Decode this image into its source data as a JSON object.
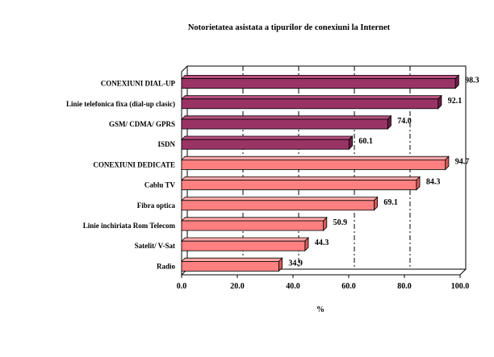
{
  "chart_data": {
    "type": "bar",
    "orientation": "horizontal",
    "title": "Notorietatea asistata a tipurilor de conexiuni la Internet",
    "xlabel": "%",
    "xlim": [
      0,
      100
    ],
    "xticks": [
      "0.0",
      "20.0",
      "40.0",
      "60.0",
      "80.0",
      "100.0"
    ],
    "categories": [
      "CONEXIUNI DIAL-UP",
      "Linie telefonica fixa (dial-up clasic)",
      "GSM/ CDMA/ GPRS",
      "ISDN",
      "CONEXIUNI DEDICATE",
      "Cablu TV",
      "Fibra optica",
      "Linie inchiriata Rom Telecom",
      "Satelit/ V-Sat",
      "Radio"
    ],
    "values": [
      98.3,
      92.1,
      74.0,
      60.1,
      94.7,
      84.3,
      69.1,
      50.9,
      44.3,
      34.9
    ],
    "value_labels": [
      "98.3",
      "92.1",
      "74.0",
      "60.1",
      "94.7",
      "84.3",
      "69.1",
      "50.9",
      "44.3",
      "34.9"
    ],
    "bar_groups": [
      "dialup",
      "dialup",
      "dialup",
      "dialup",
      "dedicated",
      "dedicated",
      "dedicated",
      "dedicated",
      "dedicated",
      "dedicated"
    ],
    "colors": {
      "dialup": "#993366",
      "dedicated": "#ff8080",
      "dialup_side": "#6b1f45",
      "dedicated_side": "#d95a5a",
      "dialup_top": "#b8507f",
      "dedicated_top": "#ffa6a6"
    },
    "gridlines": "vertical-dashed",
    "legend": "none"
  }
}
